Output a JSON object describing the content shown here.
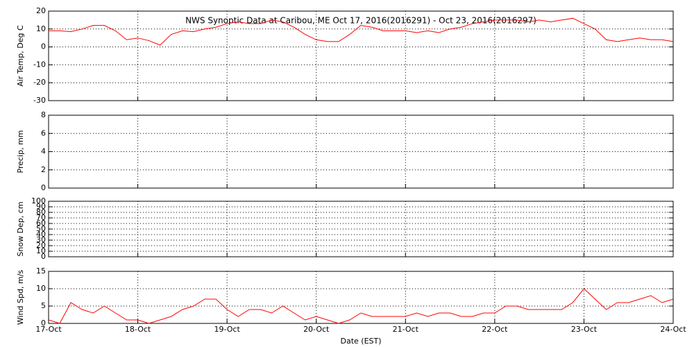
{
  "chart_data": [
    {
      "type": "line",
      "title": "NWS Synoptic Data at Caribou, ME   Oct 17, 2016(2016291) - Oct 23, 2016(2016297)",
      "ylabel": "Air Temp, Deg C",
      "xlim": [
        0,
        7
      ],
      "xticks": [
        0,
        1,
        2,
        3,
        4,
        5,
        6,
        7
      ],
      "ylim": [
        -30,
        20
      ],
      "yticks": [
        -30,
        -20,
        -10,
        0,
        10,
        20
      ],
      "grid": true,
      "x": [
        0,
        0.125,
        0.25,
        0.375,
        0.5,
        0.625,
        0.75,
        0.875,
        1,
        1.125,
        1.25,
        1.375,
        1.5,
        1.625,
        1.75,
        1.875,
        2,
        2.125,
        2.25,
        2.375,
        2.5,
        2.625,
        2.75,
        2.875,
        3,
        3.125,
        3.25,
        3.375,
        3.5,
        3.625,
        3.75,
        3.875,
        4,
        4.125,
        4.25,
        4.375,
        4.5,
        4.625,
        4.75,
        4.875,
        5,
        5.125,
        5.25,
        5.375,
        5.5,
        5.625,
        5.75,
        5.875,
        6,
        6.125,
        6.25,
        6.375,
        6.5,
        6.625,
        6.75,
        6.875,
        7
      ],
      "series": [
        {
          "color": "#ff0000",
          "values": [
            9,
            9,
            8.5,
            10,
            12,
            12,
            9,
            4,
            5,
            3.5,
            1,
            7,
            9,
            8.5,
            10,
            11,
            13,
            14,
            13,
            13,
            15,
            14,
            11,
            7,
            4,
            3,
            3,
            7,
            12,
            11,
            9,
            9,
            9,
            8,
            9,
            8,
            10,
            11,
            13,
            14,
            15,
            15,
            15,
            14,
            15,
            14,
            15,
            16,
            13,
            10,
            4,
            3,
            4,
            5,
            4,
            4,
            3
          ]
        }
      ]
    },
    {
      "type": "line",
      "ylabel": "Precip, mm",
      "xlim": [
        0,
        7
      ],
      "xticks": [
        0,
        1,
        2,
        3,
        4,
        5,
        6,
        7
      ],
      "ylim": [
        0,
        8
      ],
      "yticks": [
        0,
        2,
        4,
        6,
        8
      ],
      "grid": true
    },
    {
      "type": "line",
      "ylabel": "Snow Dep, cm",
      "xlim": [
        0,
        7
      ],
      "xticks": [
        0,
        1,
        2,
        3,
        4,
        5,
        6,
        7
      ],
      "ylim": [
        0,
        100
      ],
      "yticks": [
        0,
        10,
        20,
        30,
        40,
        50,
        60,
        70,
        80,
        90,
        100
      ],
      "grid": true
    },
    {
      "type": "line",
      "ylabel": "Wind Spd, m/s",
      "xlabel": "Date (EST)",
      "xlim": [
        0,
        7
      ],
      "xticks": [
        {
          "value": 0,
          "label": "17-Oct"
        },
        {
          "value": 1,
          "label": "18-Oct"
        },
        {
          "value": 2,
          "label": "19-Oct"
        },
        {
          "value": 3,
          "label": "20-Oct"
        },
        {
          "value": 4,
          "label": "21-Oct"
        },
        {
          "value": 5,
          "label": "22-Oct"
        },
        {
          "value": 6,
          "label": "23-Oct"
        },
        {
          "value": 7,
          "label": "24-Oct"
        }
      ],
      "ylim": [
        0,
        15
      ],
      "yticks": [
        0,
        5,
        10,
        15
      ],
      "grid": true,
      "x": [
        0,
        0.125,
        0.25,
        0.375,
        0.5,
        0.625,
        0.75,
        0.875,
        1,
        1.125,
        1.25,
        1.375,
        1.5,
        1.625,
        1.75,
        1.875,
        2,
        2.125,
        2.25,
        2.375,
        2.5,
        2.625,
        2.75,
        2.875,
        3,
        3.125,
        3.25,
        3.375,
        3.5,
        3.625,
        3.75,
        3.875,
        4,
        4.125,
        4.25,
        4.375,
        4.5,
        4.625,
        4.75,
        4.875,
        5,
        5.125,
        5.25,
        5.375,
        5.5,
        5.625,
        5.75,
        5.875,
        6,
        6.125,
        6.25,
        6.375,
        6.5,
        6.625,
        6.75,
        6.875,
        7
      ],
      "series": [
        {
          "color": "#ff0000",
          "values": [
            1,
            0,
            6,
            4,
            3,
            5,
            3,
            1,
            1,
            0,
            1,
            2,
            4,
            5,
            7,
            7,
            4,
            2,
            4,
            4,
            3,
            5,
            3,
            1,
            2,
            1,
            0,
            1,
            3,
            2,
            2,
            2,
            2,
            3,
            2,
            3,
            3,
            2,
            2,
            3,
            3,
            5,
            5,
            4,
            4,
            4,
            4,
            6,
            10,
            7,
            4,
            6,
            6,
            7,
            8,
            6,
            7
          ]
        }
      ]
    }
  ]
}
